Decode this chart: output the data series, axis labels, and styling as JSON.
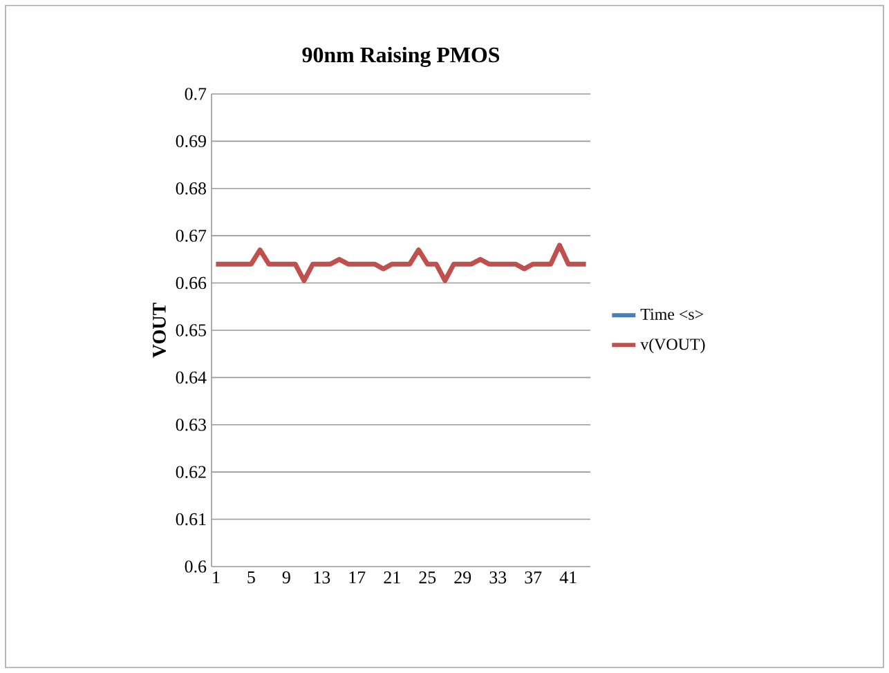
{
  "chart_data": {
    "type": "line",
    "title": "90nm Raising PMOS",
    "ylabel": "VOUT",
    "categories": [
      "1",
      null,
      null,
      null,
      "5",
      null,
      null,
      null,
      "9",
      null,
      null,
      null,
      "13",
      null,
      null,
      null,
      "17",
      null,
      null,
      null,
      "21",
      null,
      null,
      null,
      "25",
      null,
      null,
      null,
      "29",
      null,
      null,
      null,
      "33",
      null,
      null,
      null,
      "37",
      null,
      null,
      null,
      "41",
      null,
      null
    ],
    "series": [
      {
        "name": "Time <s>",
        "color": "#4a7ebb",
        "values": [
          null,
          null,
          null,
          null,
          null,
          null,
          null,
          null,
          null,
          null,
          null,
          null,
          null,
          null,
          null,
          null,
          null,
          null,
          null,
          null,
          null,
          null,
          null,
          null,
          null,
          null,
          null,
          null,
          null,
          null,
          null,
          null,
          null,
          null,
          null,
          null,
          null,
          null,
          null,
          null,
          null,
          null,
          null
        ]
      },
      {
        "name": "v(VOUT)",
        "color": "#c0504d",
        "values": [
          0.664,
          0.664,
          0.664,
          0.664,
          0.664,
          0.667,
          0.664,
          0.664,
          0.664,
          0.664,
          0.6605,
          0.664,
          0.664,
          0.664,
          0.665,
          0.664,
          0.664,
          0.664,
          0.664,
          0.663,
          0.664,
          0.664,
          0.664,
          0.667,
          0.664,
          0.664,
          0.6605,
          0.664,
          0.664,
          0.664,
          0.665,
          0.664,
          0.664,
          0.664,
          0.664,
          0.663,
          0.664,
          0.664,
          0.664,
          0.668,
          0.664,
          0.664,
          0.664
        ]
      }
    ],
    "ylim": [
      0.6,
      0.7
    ],
    "yticks": [
      0.6,
      0.61,
      0.62,
      0.63,
      0.64,
      0.65,
      0.66,
      0.67,
      0.68,
      0.69,
      0.7
    ],
    "grid": "y",
    "legend": "right",
    "marker": "none",
    "line_style": "solid"
  }
}
